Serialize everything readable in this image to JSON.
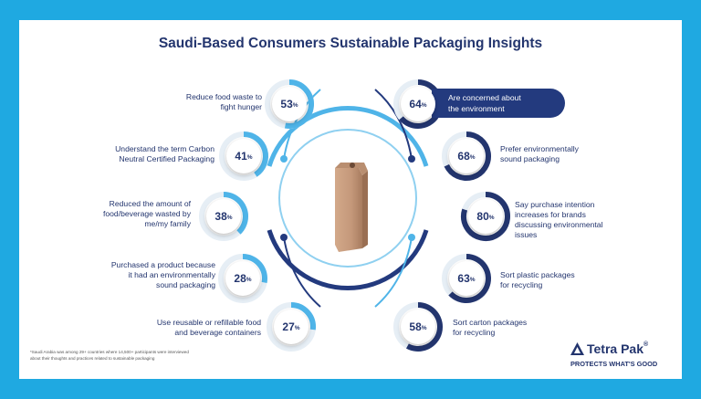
{
  "title": "Saudi-Based Consumers Sustainable Packaging Insights",
  "insights_left": [
    {
      "value": "53",
      "unit": "%",
      "text_1": "Reduce food waste to",
      "text_2": "fight hunger",
      "text_3": ""
    },
    {
      "value": "41",
      "unit": "%",
      "text_1": "Understand the term Carbon",
      "text_2": "Neutral Certified Packaging",
      "text_3": ""
    },
    {
      "value": "38",
      "unit": "%",
      "text_1": "Reduced the amount of",
      "text_2": "food/beverage wasted by",
      "text_3": "me/my family"
    },
    {
      "value": "28",
      "unit": "%",
      "text_1": "Purchased a product because",
      "text_2": "it had an environmentally",
      "text_3": "sound packaging"
    },
    {
      "value": "27",
      "unit": "%",
      "text_1": "Use reusable or refillable food",
      "text_2": "and beverage containers",
      "text_3": ""
    }
  ],
  "insights_right": [
    {
      "value": "64",
      "unit": "%",
      "text_1": "Are concerned about",
      "text_2": "the environment",
      "text_3": "",
      "text_4": ""
    },
    {
      "value": "68",
      "unit": "%",
      "text_1": "Prefer environmentally",
      "text_2": "sound packaging",
      "text_3": "",
      "text_4": ""
    },
    {
      "value": "80",
      "unit": "%",
      "text_1": "Say purchase intention",
      "text_2": "increases for brands",
      "text_3": "discussing environmental",
      "text_4": "issues"
    },
    {
      "value": "63",
      "unit": "%",
      "text_1": "Sort plastic packages",
      "text_2": "for recycling",
      "text_3": "",
      "text_4": ""
    },
    {
      "value": "58",
      "unit": "%",
      "text_1": "Sort carton packages",
      "text_2": "for recycling",
      "text_3": "",
      "text_4": ""
    }
  ],
  "footnote_1": "*Saudi Arabia was among 29+ countries where 14,500+ participants were interviewed",
  "footnote_2": "about their thoughts and practices related to sustainable packaging",
  "brand": {
    "name": "Tetra Pak",
    "reg": "®",
    "tagline": "PROTECTS WHAT'S GOOD"
  },
  "colors": {
    "background": "#1fa9e1",
    "navy": "#23356e",
    "light_blue": "#4fb4e8"
  }
}
